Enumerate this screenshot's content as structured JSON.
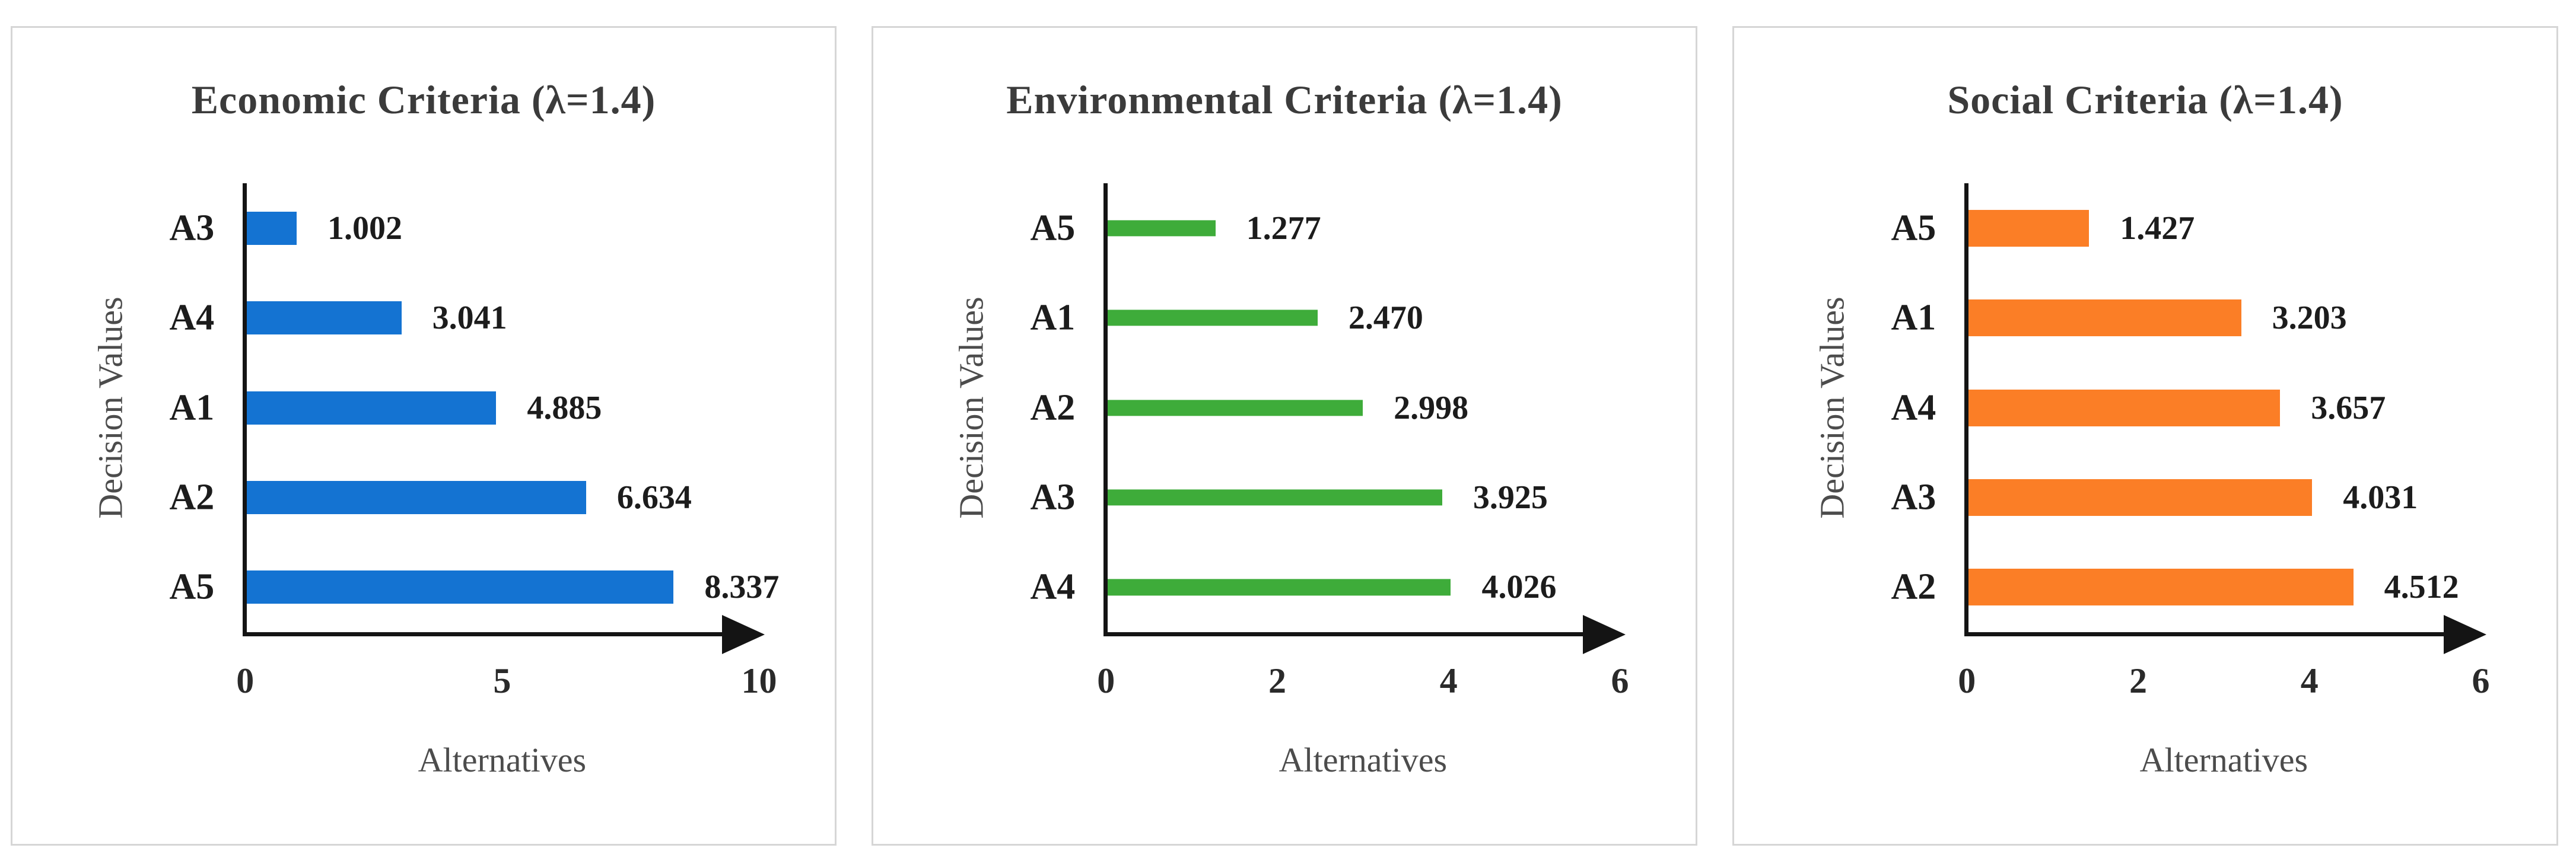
{
  "style": {
    "page_background": "#ffffff",
    "panel_border_color": "#d6d6d6",
    "axis_color": "#141414",
    "title_color": "#3b3b3b",
    "label_color": "#1c1c1c",
    "axis_title_color": "#4c4c4c"
  },
  "chart_data": [
    {
      "type": "bar",
      "orientation": "horizontal",
      "title": "Economic Criteria (λ=1.4)",
      "xlabel": "Alternatives",
      "ylabel": "Decision Values",
      "xlim": [
        0,
        10
      ],
      "xticks": [
        0,
        5,
        10
      ],
      "xtick_labels": [
        "0",
        "5",
        "10"
      ],
      "grid": false,
      "legend": "none",
      "bar_color": "#1473d2",
      "bar_thickness_pct": 37,
      "categories": [
        "A3",
        "A4",
        "A1",
        "A2",
        "A5"
      ],
      "values": [
        1.002,
        3.041,
        4.885,
        6.634,
        8.337
      ],
      "value_labels": [
        "1.002",
        "3.041",
        "4.885",
        "6.634",
        "8.337"
      ]
    },
    {
      "type": "bar",
      "orientation": "horizontal",
      "title": "Environmental Criteria (λ=1.4)",
      "xlabel": "Alternatives",
      "ylabel": "Decision Values",
      "xlim": [
        0,
        6
      ],
      "xticks": [
        0,
        2,
        4,
        6
      ],
      "xtick_labels": [
        "0",
        "2",
        "4",
        "6"
      ],
      "grid": false,
      "legend": "none",
      "bar_color": "#3eac3a",
      "bar_thickness_pct": 18,
      "categories": [
        "A5",
        "A1",
        "A2",
        "A3",
        "A4"
      ],
      "values": [
        1.277,
        2.47,
        2.998,
        3.925,
        4.026
      ],
      "value_labels": [
        "1.277",
        "2.470",
        "2.998",
        "3.925",
        "4.026"
      ]
    },
    {
      "type": "bar",
      "orientation": "horizontal",
      "title": "Social Criteria (λ=1.4)",
      "xlabel": "Alternatives",
      "ylabel": "Decision Values",
      "xlim": [
        0,
        6
      ],
      "xticks": [
        0,
        2,
        4,
        6
      ],
      "xtick_labels": [
        "0",
        "2",
        "4",
        "6"
      ],
      "grid": false,
      "legend": "none",
      "bar_color": "#fb7e26",
      "bar_thickness_pct": 41,
      "categories": [
        "A5",
        "A1",
        "A4",
        "A3",
        "A2"
      ],
      "values": [
        1.427,
        3.203,
        3.657,
        4.031,
        4.512
      ],
      "value_labels": [
        "1.427",
        "3.203",
        "3.657",
        "4.031",
        "4.512"
      ]
    }
  ]
}
